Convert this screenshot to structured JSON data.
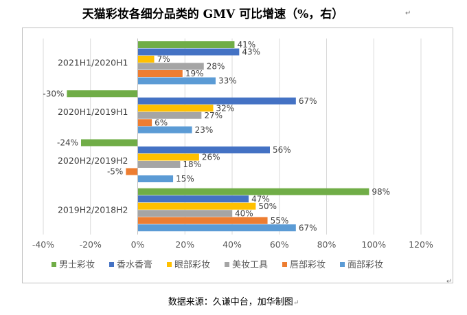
{
  "chart_data": {
    "type": "bar",
    "orientation": "horizontal",
    "title": "天猫彩妆各细分品类的 GMV 可比增速（%，右）",
    "categories": [
      "2021H1/2020H1",
      "2020H1/2019H1",
      "2020H2/2019H2",
      "2019H2/2018H2"
    ],
    "series": [
      {
        "name": "男士彩妆",
        "color": "#70ad47",
        "values": [
          41,
          -30,
          -24,
          98
        ]
      },
      {
        "name": "香水香膏",
        "color": "#4472c4",
        "values": [
          43,
          67,
          56,
          47
        ]
      },
      {
        "name": "眼部彩妆",
        "color": "#ffc000",
        "values": [
          7,
          32,
          26,
          50
        ]
      },
      {
        "name": "美妆工具",
        "color": "#a5a5a5",
        "values": [
          28,
          27,
          18,
          40
        ]
      },
      {
        "name": "唇部彩妆",
        "color": "#ed7d31",
        "values": [
          19,
          6,
          -5,
          55
        ]
      },
      {
        "name": "面部彩妆",
        "color": "#5b9bd5",
        "values": [
          33,
          23,
          15,
          67
        ]
      }
    ],
    "xlim": [
      -40,
      120
    ],
    "xticks": [
      -40,
      -20,
      0,
      20,
      40,
      60,
      80,
      100,
      120
    ],
    "tick_suffix": "%",
    "grid": "vertical",
    "legend_position": "bottom"
  },
  "page": {
    "source": "数据来源：久谦中台，加华制图"
  }
}
